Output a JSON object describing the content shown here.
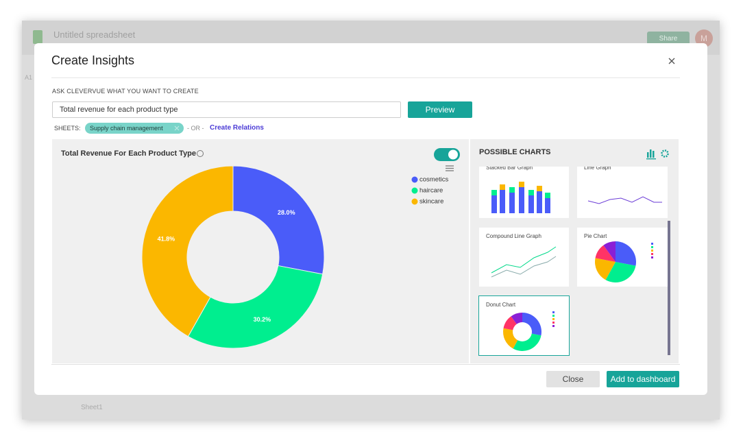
{
  "spreadsheet": {
    "title": "Untitled spreadsheet",
    "share": "Share",
    "avatar": "M",
    "cell_ref": "A1",
    "sheet_tab": "Sheet1"
  },
  "dialog": {
    "title": "Create Insights",
    "prompt_label": "ASK CLEVERVUE WHAT YOU WANT TO CREATE",
    "query": "Total revenue for each product type",
    "preview_button": "Preview",
    "sheets_label": "SHEETS:",
    "sheet_chip": "Supply chain management",
    "or_label": "- OR -",
    "create_relations": "Create Relations",
    "chart": {
      "type": "donut",
      "title": "Total Revenue For Each Product Type",
      "categories": [
        "cosmetics",
        "haircare",
        "skincare"
      ],
      "values": [
        28.0,
        30.2,
        41.8
      ],
      "value_labels": [
        "28.0%",
        "30.2%",
        "41.8%"
      ],
      "colors": [
        "#4a5cf9",
        "#00ee8f",
        "#fbb700"
      ]
    },
    "possible_charts": {
      "title": "POSSIBLE CHARTS",
      "items": [
        "Stacked Bar Graph",
        "Line Graph",
        "Compound Line Graph",
        "Pie Chart",
        "Donut Chart"
      ]
    },
    "close_button": "Close",
    "add_button": "Add to dashboard"
  }
}
